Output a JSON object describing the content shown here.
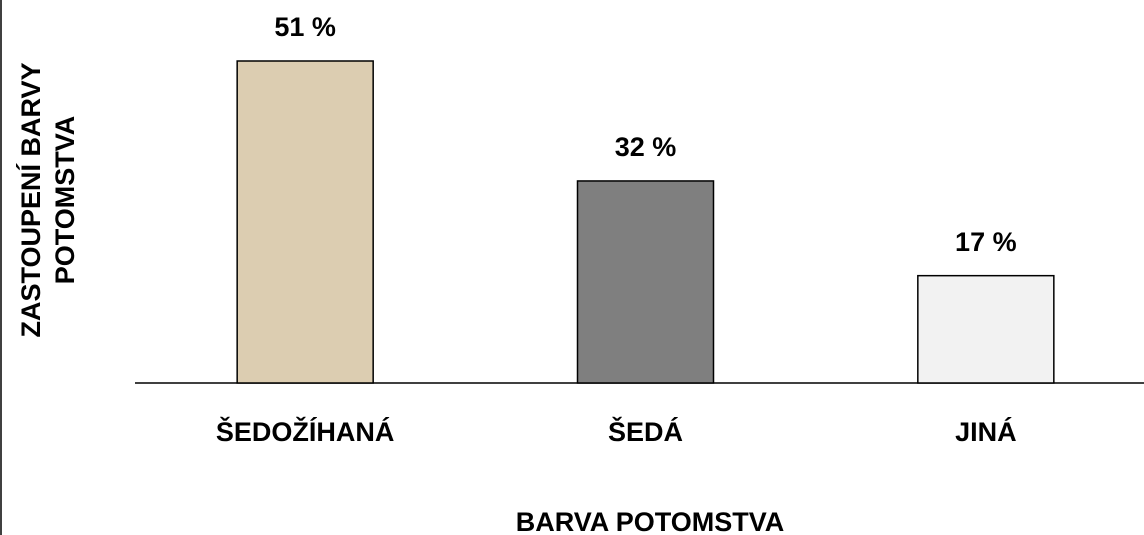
{
  "chart_data": {
    "type": "bar",
    "x_label": "BARVA POTOMSTVA",
    "y_label": "ZASTOUPENÍ BARVY POTOMSTVA",
    "categories": [
      "ŠEDOŽÍHANÁ",
      "ŠEDÁ",
      "JINÁ"
    ],
    "values": [
      51,
      32,
      17
    ],
    "value_labels": [
      "51 %",
      "32 %",
      "17 %"
    ],
    "colors": [
      "#dccdb1",
      "#7f7f7f",
      "#f2f2f2"
    ]
  }
}
